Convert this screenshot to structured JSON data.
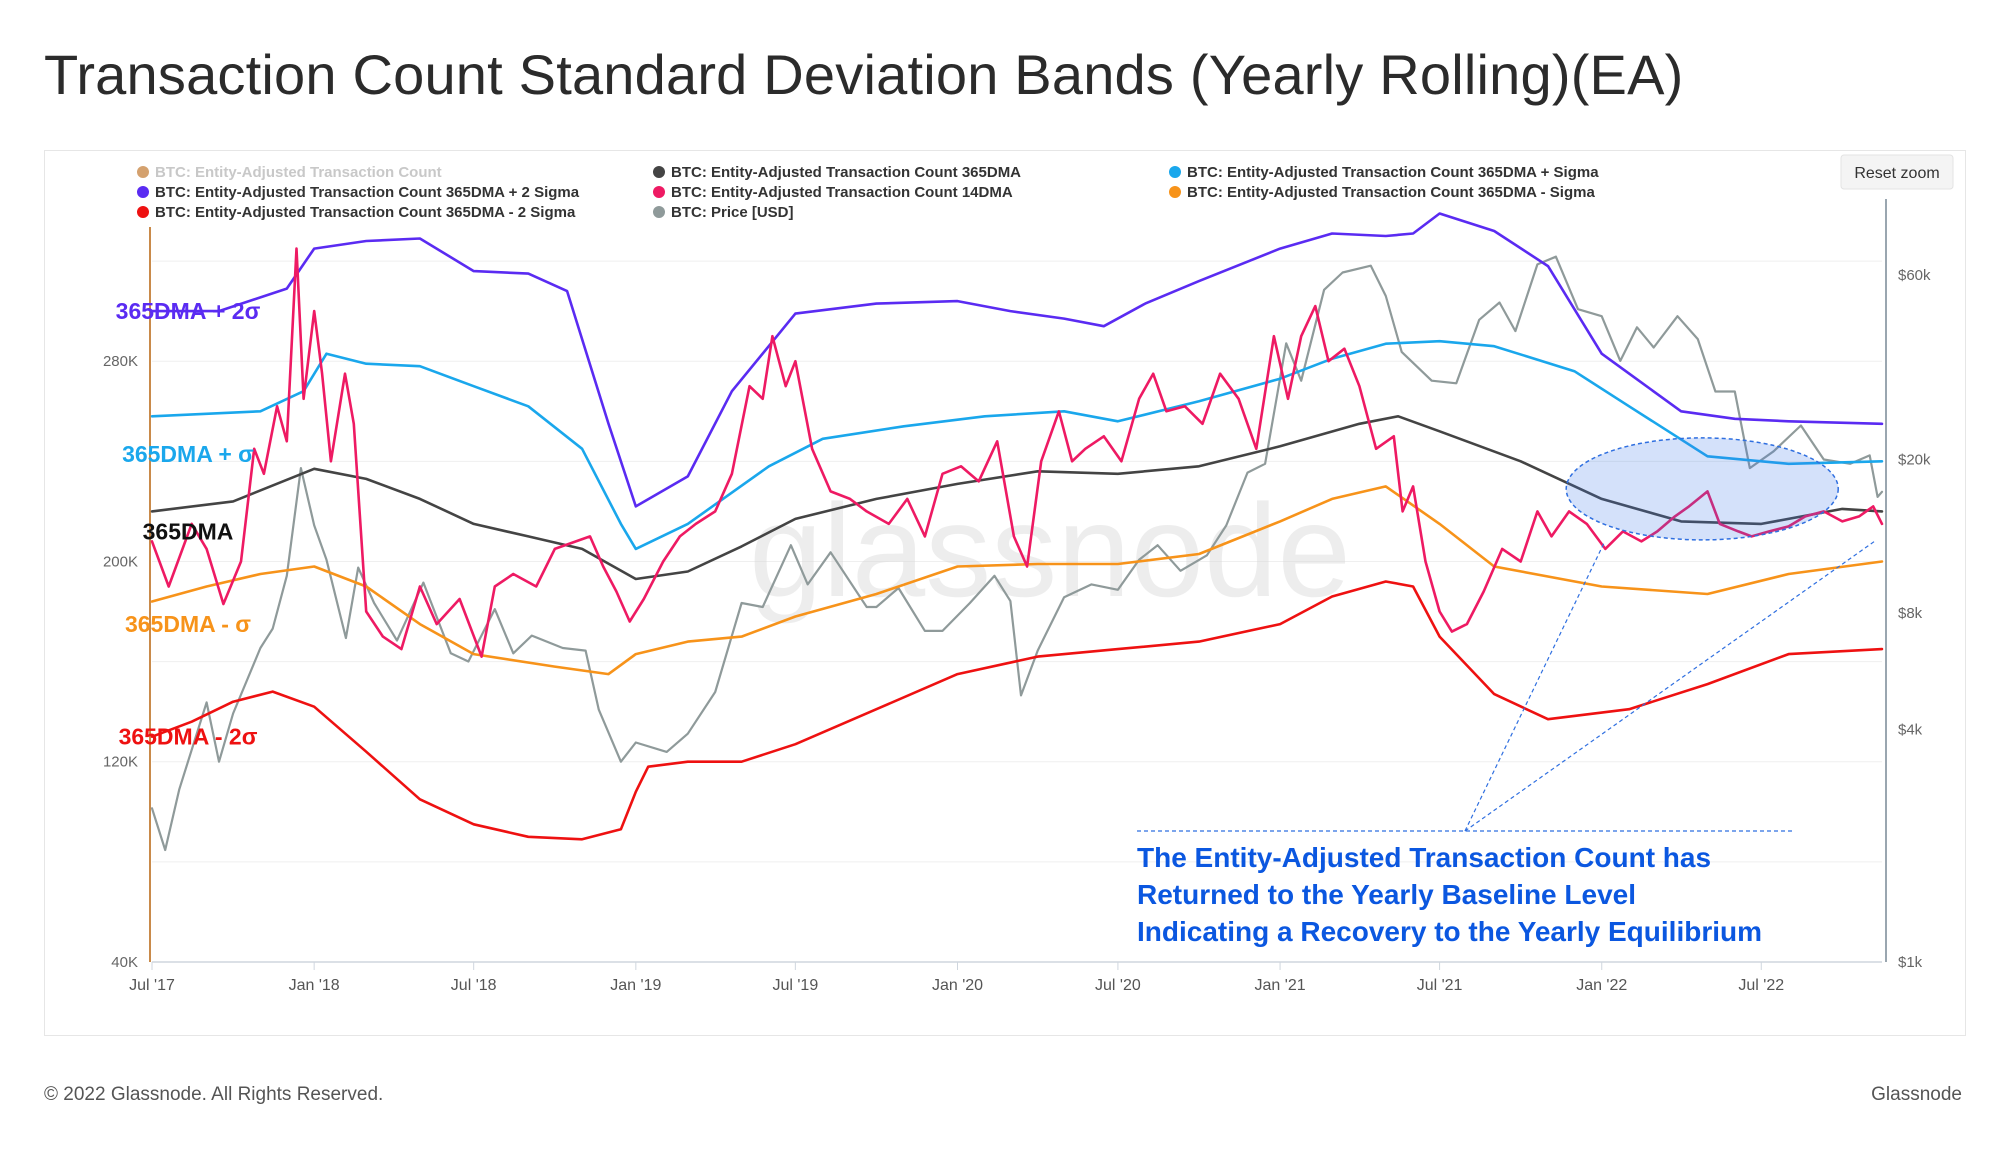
{
  "title": "Transaction Count Standard Deviation Bands (Yearly Rolling)(EA)",
  "footer": {
    "copyright": "© 2022 Glassnode. All Rights Reserved.",
    "brand": "Glassnode"
  },
  "reset_zoom_label": "Reset zoom",
  "watermark": "glassnode",
  "band_labels": [
    {
      "id": "plus2",
      "text": "365DMA + 2σ",
      "color": "#5a2bf2",
      "value": 300000
    },
    {
      "id": "plus1",
      "text": "365DMA + σ",
      "color": "#1aa7ec",
      "value": 243000
    },
    {
      "id": "base",
      "text": "365DMA",
      "color": "#111111",
      "value": 212000
    },
    {
      "id": "minus1",
      "text": "365DMA - σ",
      "color": "#f7931a",
      "value": 175000
    },
    {
      "id": "minus2",
      "text": "365DMA - 2σ",
      "color": "#ee1111",
      "value": 130000
    }
  ],
  "annotation": {
    "lines": [
      "The Entity-Adjusted Transaction Count has",
      "Returned to the Yearly Baseline Level",
      "Indicating a Recovery to the Yearly Equilibrium"
    ],
    "color": "#0b57e0"
  },
  "chart_data": {
    "type": "line",
    "x_tick_labels": [
      "Jul '17",
      "Jan '18",
      "Jul '18",
      "Jan '19",
      "Jul '19",
      "Jan '20",
      "Jul '20",
      "Jan '21",
      "Jul '21",
      "Jan '22",
      "Jul '22"
    ],
    "x_ticks": [
      "2017-07-01",
      "2018-01-01",
      "2018-07-01",
      "2019-01-01",
      "2019-07-01",
      "2020-01-01",
      "2020-07-01",
      "2021-01-01",
      "2021-07-01",
      "2022-01-01",
      "2022-07-01"
    ],
    "x_range": [
      "2017-07-01",
      "2022-11-15"
    ],
    "y_left": {
      "ticks": [
        40000,
        120000,
        200000,
        280000
      ],
      "tick_labels": [
        "40K",
        "120K",
        "200K",
        "280K"
      ],
      "range": [
        40000,
        340000
      ]
    },
    "y_right": {
      "scale": "log",
      "ticks": [
        1000,
        4000,
        8000,
        20000,
        60000
      ],
      "tick_labels": [
        "$1k",
        "$4k",
        "$8k",
        "$20k",
        "$60k"
      ],
      "range": [
        1000,
        88000
      ]
    },
    "legend": [
      {
        "name": "BTC: Entity-Adjusted Transaction Count",
        "color": "#c98a4a",
        "hidden": true
      },
      {
        "name": "BTC: Entity-Adjusted Transaction Count 365DMA",
        "color": "#444444"
      },
      {
        "name": "BTC: Entity-Adjusted Transaction Count 365DMA + Sigma",
        "color": "#1aa7ec"
      },
      {
        "name": "BTC: Entity-Adjusted Transaction Count 365DMA + 2 Sigma",
        "color": "#5a2bf2"
      },
      {
        "name": "BTC: Entity-Adjusted Transaction Count 14DMA",
        "color": "#ee1a63"
      },
      {
        "name": "BTC: Entity-Adjusted Transaction Count 365DMA - Sigma",
        "color": "#f7931a"
      },
      {
        "name": "BTC: Entity-Adjusted Transaction Count 365DMA - 2 Sigma",
        "color": "#ee1111"
      },
      {
        "name": "BTC: Price [USD]",
        "color": "#8f9a9a"
      }
    ],
    "grid": true,
    "legend_position": "top",
    "series": [
      {
        "name": "BTC: Entity-Adjusted Transaction Count 365DMA + 2 Sigma",
        "axis": "left",
        "color": "#5a2bf2",
        "x": [
          "2017-07-01",
          "2017-09-15",
          "2017-12-01",
          "2018-01-01",
          "2018-03-01",
          "2018-05-01",
          "2018-07-01",
          "2018-09-01",
          "2018-10-15",
          "2018-12-01",
          "2019-01-01",
          "2019-03-01",
          "2019-04-20",
          "2019-07-01",
          "2019-10-01",
          "2020-01-01",
          "2020-03-01",
          "2020-05-01",
          "2020-06-15",
          "2020-08-01",
          "2020-10-01",
          "2021-01-01",
          "2021-03-01",
          "2021-05-01",
          "2021-06-01",
          "2021-07-01",
          "2021-09-01",
          "2021-11-01",
          "2022-01-01",
          "2022-04-01",
          "2022-06-01",
          "2022-08-01",
          "2022-11-15"
        ],
        "values": [
          300000,
          300000,
          309000,
          325000,
          328000,
          329000,
          316000,
          315000,
          308000,
          255000,
          222000,
          234000,
          268000,
          299000,
          303000,
          304000,
          300000,
          297000,
          294000,
          303000,
          312000,
          325000,
          331000,
          330000,
          331000,
          339000,
          332000,
          318000,
          283000,
          260000,
          257000,
          256000,
          255000
        ]
      },
      {
        "name": "BTC: Entity-Adjusted Transaction Count 365DMA + Sigma",
        "axis": "left",
        "color": "#1aa7ec",
        "x": [
          "2017-07-01",
          "2017-11-01",
          "2017-12-20",
          "2018-01-15",
          "2018-03-01",
          "2018-05-01",
          "2018-07-01",
          "2018-09-01",
          "2018-11-01",
          "2018-12-15",
          "2019-01-01",
          "2019-03-01",
          "2019-06-01",
          "2019-08-01",
          "2019-11-01",
          "2020-02-01",
          "2020-05-01",
          "2020-07-01",
          "2020-10-01",
          "2021-01-01",
          "2021-03-01",
          "2021-05-01",
          "2021-07-01",
          "2021-09-01",
          "2021-12-01",
          "2022-02-01",
          "2022-05-01",
          "2022-08-01",
          "2022-11-15"
        ],
        "values": [
          258000,
          260000,
          268000,
          283000,
          279000,
          278000,
          270000,
          262000,
          245000,
          215000,
          205000,
          215000,
          238000,
          249000,
          254000,
          258000,
          260000,
          256000,
          264000,
          273000,
          281000,
          287000,
          288000,
          286000,
          276000,
          262000,
          242000,
          239000,
          240000
        ]
      },
      {
        "name": "BTC: Entity-Adjusted Transaction Count 365DMA",
        "axis": "left",
        "color": "#444444",
        "x": [
          "2017-07-01",
          "2017-10-01",
          "2018-01-01",
          "2018-03-01",
          "2018-05-01",
          "2018-07-01",
          "2018-09-01",
          "2018-11-01",
          "2019-01-01",
          "2019-03-01",
          "2019-05-01",
          "2019-07-01",
          "2019-10-01",
          "2020-01-01",
          "2020-04-01",
          "2020-07-01",
          "2020-10-01",
          "2021-01-01",
          "2021-04-01",
          "2021-05-15",
          "2021-07-01",
          "2021-10-01",
          "2022-01-01",
          "2022-04-01",
          "2022-07-01",
          "2022-10-01",
          "2022-11-15"
        ],
        "values": [
          220000,
          224000,
          237000,
          233000,
          225000,
          215000,
          210000,
          205000,
          193000,
          196000,
          206000,
          217000,
          225000,
          231000,
          236000,
          235000,
          238000,
          246000,
          255000,
          258000,
          252000,
          240000,
          225000,
          216000,
          215000,
          221000,
          220000
        ]
      },
      {
        "name": "BTC: Entity-Adjusted Transaction Count 365DMA - Sigma",
        "axis": "left",
        "color": "#f7931a",
        "x": [
          "2017-07-01",
          "2017-09-01",
          "2017-11-01",
          "2018-01-01",
          "2018-03-01",
          "2018-05-01",
          "2018-07-01",
          "2018-10-01",
          "2018-12-01",
          "2019-01-01",
          "2019-03-01",
          "2019-05-01",
          "2019-07-01",
          "2019-10-01",
          "2020-01-01",
          "2020-04-01",
          "2020-07-01",
          "2020-10-01",
          "2021-01-01",
          "2021-03-01",
          "2021-05-01",
          "2021-07-01",
          "2021-09-01",
          "2022-01-01",
          "2022-05-01",
          "2022-08-01",
          "2022-11-15"
        ],
        "values": [
          184000,
          190000,
          195000,
          198000,
          190000,
          175000,
          163000,
          158000,
          155000,
          163000,
          168000,
          170000,
          178000,
          187000,
          198000,
          199000,
          199000,
          203000,
          216000,
          225000,
          230000,
          215000,
          198000,
          190000,
          187000,
          195000,
          200000
        ]
      },
      {
        "name": "BTC: Entity-Adjusted Transaction Count 365DMA - 2 Sigma",
        "axis": "left",
        "color": "#ee1111",
        "x": [
          "2017-07-01",
          "2017-08-15",
          "2017-10-01",
          "2017-11-15",
          "2018-01-01",
          "2018-03-01",
          "2018-05-01",
          "2018-07-01",
          "2018-09-01",
          "2018-11-01",
          "2018-12-15",
          "2019-01-01",
          "2019-01-15",
          "2019-03-01",
          "2019-05-01",
          "2019-07-01",
          "2019-10-01",
          "2020-01-01",
          "2020-04-01",
          "2020-07-01",
          "2020-10-01",
          "2021-01-01",
          "2021-03-01",
          "2021-05-01",
          "2021-06-01",
          "2021-07-01",
          "2021-09-01",
          "2021-11-01",
          "2022-02-01",
          "2022-05-01",
          "2022-08-01",
          "2022-11-15"
        ],
        "values": [
          130000,
          136000,
          144000,
          148000,
          142000,
          124000,
          105000,
          95000,
          90000,
          89000,
          93000,
          108000,
          118000,
          120000,
          120000,
          127000,
          141000,
          155000,
          162000,
          165000,
          168000,
          175000,
          186000,
          192000,
          190000,
          170000,
          147000,
          137000,
          141000,
          151000,
          163000,
          165000
        ]
      },
      {
        "name": "BTC: Entity-Adjusted Transaction Count 14DMA",
        "axis": "left",
        "color": "#ee1a63",
        "x": [
          "2017-07-01",
          "2017-07-20",
          "2017-08-15",
          "2017-09-01",
          "2017-09-20",
          "2017-10-10",
          "2017-10-25",
          "2017-11-05",
          "2017-11-20",
          "2017-12-01",
          "2017-12-12",
          "2017-12-20",
          "2018-01-01",
          "2018-01-10",
          "2018-01-20",
          "2018-02-05",
          "2018-02-15",
          "2018-03-01",
          "2018-03-20",
          "2018-04-10",
          "2018-05-01",
          "2018-05-20",
          "2018-06-15",
          "2018-07-10",
          "2018-07-25",
          "2018-08-15",
          "2018-09-10",
          "2018-10-01",
          "2018-10-25",
          "2018-11-10",
          "2018-11-25",
          "2018-12-10",
          "2018-12-25",
          "2019-01-10",
          "2019-02-01",
          "2019-02-20",
          "2019-03-10",
          "2019-04-01",
          "2019-04-20",
          "2019-05-10",
          "2019-05-25",
          "2019-06-05",
          "2019-06-20",
          "2019-07-01",
          "2019-07-20",
          "2019-08-10",
          "2019-09-01",
          "2019-09-20",
          "2019-10-15",
          "2019-11-05",
          "2019-11-25",
          "2019-12-15",
          "2020-01-05",
          "2020-01-25",
          "2020-02-15",
          "2020-03-05",
          "2020-03-20",
          "2020-04-05",
          "2020-04-25",
          "2020-05-10",
          "2020-05-25",
          "2020-06-15",
          "2020-07-05",
          "2020-07-25",
          "2020-08-10",
          "2020-08-25",
          "2020-09-15",
          "2020-10-05",
          "2020-10-25",
          "2020-11-15",
          "2020-12-05",
          "2020-12-25",
          "2021-01-10",
          "2021-01-25",
          "2021-02-10",
          "2021-02-25",
          "2021-03-15",
          "2021-04-01",
          "2021-04-20",
          "2021-05-10",
          "2021-05-20",
          "2021-06-01",
          "2021-06-15",
          "2021-07-01",
          "2021-07-15",
          "2021-08-01",
          "2021-08-20",
          "2021-09-10",
          "2021-10-01",
          "2021-10-20",
          "2021-11-05",
          "2021-11-25",
          "2021-12-15",
          "2022-01-05",
          "2022-01-25",
          "2022-02-15",
          "2022-03-05",
          "2022-03-25",
          "2022-04-10",
          "2022-05-01",
          "2022-05-15",
          "2022-06-05",
          "2022-06-20",
          "2022-07-10",
          "2022-08-01",
          "2022-08-20",
          "2022-09-10",
          "2022-10-01",
          "2022-10-20",
          "2022-11-05",
          "2022-11-15"
        ],
        "values": [
          208000,
          190000,
          215000,
          205000,
          183000,
          200000,
          245000,
          235000,
          262000,
          248000,
          325000,
          265000,
          300000,
          275000,
          240000,
          275000,
          255000,
          180000,
          170000,
          165000,
          190000,
          175000,
          185000,
          162000,
          190000,
          195000,
          190000,
          205000,
          208000,
          210000,
          198000,
          188000,
          176000,
          185000,
          200000,
          210000,
          215000,
          220000,
          235000,
          270000,
          265000,
          290000,
          270000,
          280000,
          245000,
          228000,
          225000,
          220000,
          215000,
          225000,
          210000,
          235000,
          238000,
          232000,
          248000,
          210000,
          198000,
          240000,
          260000,
          240000,
          245000,
          250000,
          240000,
          265000,
          275000,
          260000,
          262000,
          255000,
          275000,
          265000,
          245000,
          290000,
          265000,
          290000,
          302000,
          280000,
          285000,
          270000,
          245000,
          250000,
          220000,
          230000,
          200000,
          180000,
          172000,
          175000,
          188000,
          205000,
          200000,
          220000,
          210000,
          220000,
          215000,
          205000,
          212000,
          208000,
          212000,
          218000,
          222000,
          228000,
          215000,
          212000,
          210000,
          212000,
          214000,
          218000,
          220000,
          216000,
          218000,
          222000,
          215000
        ]
      },
      {
        "name": "BTC: Price [USD]",
        "axis": "right",
        "color": "#8f9a9a",
        "x": [
          "2017-07-01",
          "2017-07-16",
          "2017-08-01",
          "2017-09-01",
          "2017-09-15",
          "2017-10-01",
          "2017-11-01",
          "2017-11-15",
          "2017-12-01",
          "2017-12-17",
          "2018-01-01",
          "2018-01-15",
          "2018-02-06",
          "2018-02-20",
          "2018-03-10",
          "2018-04-05",
          "2018-05-05",
          "2018-06-05",
          "2018-06-25",
          "2018-07-25",
          "2018-08-15",
          "2018-09-05",
          "2018-10-10",
          "2018-11-05",
          "2018-11-20",
          "2018-12-15",
          "2019-01-01",
          "2019-02-05",
          "2019-03-01",
          "2019-04-01",
          "2019-05-01",
          "2019-05-25",
          "2019-06-26",
          "2019-07-15",
          "2019-08-10",
          "2019-09-20",
          "2019-10-01",
          "2019-10-26",
          "2019-11-25",
          "2019-12-15",
          "2020-01-15",
          "2020-02-12",
          "2020-03-01",
          "2020-03-13",
          "2020-04-01",
          "2020-05-01",
          "2020-06-01",
          "2020-07-01",
          "2020-07-25",
          "2020-08-15",
          "2020-09-10",
          "2020-10-10",
          "2020-11-01",
          "2020-11-25",
          "2020-12-15",
          "2021-01-08",
          "2021-01-25",
          "2021-02-20",
          "2021-03-13",
          "2021-04-14",
          "2021-05-01",
          "2021-05-19",
          "2021-06-22",
          "2021-07-20",
          "2021-08-15",
          "2021-09-07",
          "2021-09-25",
          "2021-10-20",
          "2021-11-10",
          "2021-12-05",
          "2022-01-01",
          "2022-01-22",
          "2022-02-10",
          "2022-03-01",
          "2022-03-28",
          "2022-04-20",
          "2022-05-10",
          "2022-06-01",
          "2022-06-18",
          "2022-07-15",
          "2022-08-15",
          "2022-09-10",
          "2022-10-10",
          "2022-11-01",
          "2022-11-10",
          "2022-11-15"
        ],
        "values": [
          2500,
          1950,
          2800,
          4700,
          3300,
          4400,
          6500,
          7300,
          10000,
          19000,
          13500,
          11000,
          6900,
          10500,
          8500,
          6800,
          9600,
          6300,
          6000,
          8200,
          6300,
          7000,
          6500,
          6400,
          4500,
          3300,
          3700,
          3500,
          3900,
          5000,
          8500,
          8300,
          12000,
          9500,
          11500,
          8300,
          8300,
          9300,
          7200,
          7200,
          8500,
          10000,
          8600,
          4900,
          6400,
          8800,
          9500,
          9200,
          11000,
          12000,
          10300,
          11300,
          13500,
          18500,
          19500,
          40000,
          32000,
          55000,
          61000,
          63500,
          53000,
          38000,
          32000,
          31500,
          46000,
          51000,
          43000,
          64000,
          67000,
          49000,
          47000,
          36000,
          44000,
          39000,
          47000,
          41000,
          30000,
          30000,
          19000,
          21000,
          24500,
          20000,
          19500,
          20500,
          16000,
          16500
        ]
      }
    ]
  }
}
